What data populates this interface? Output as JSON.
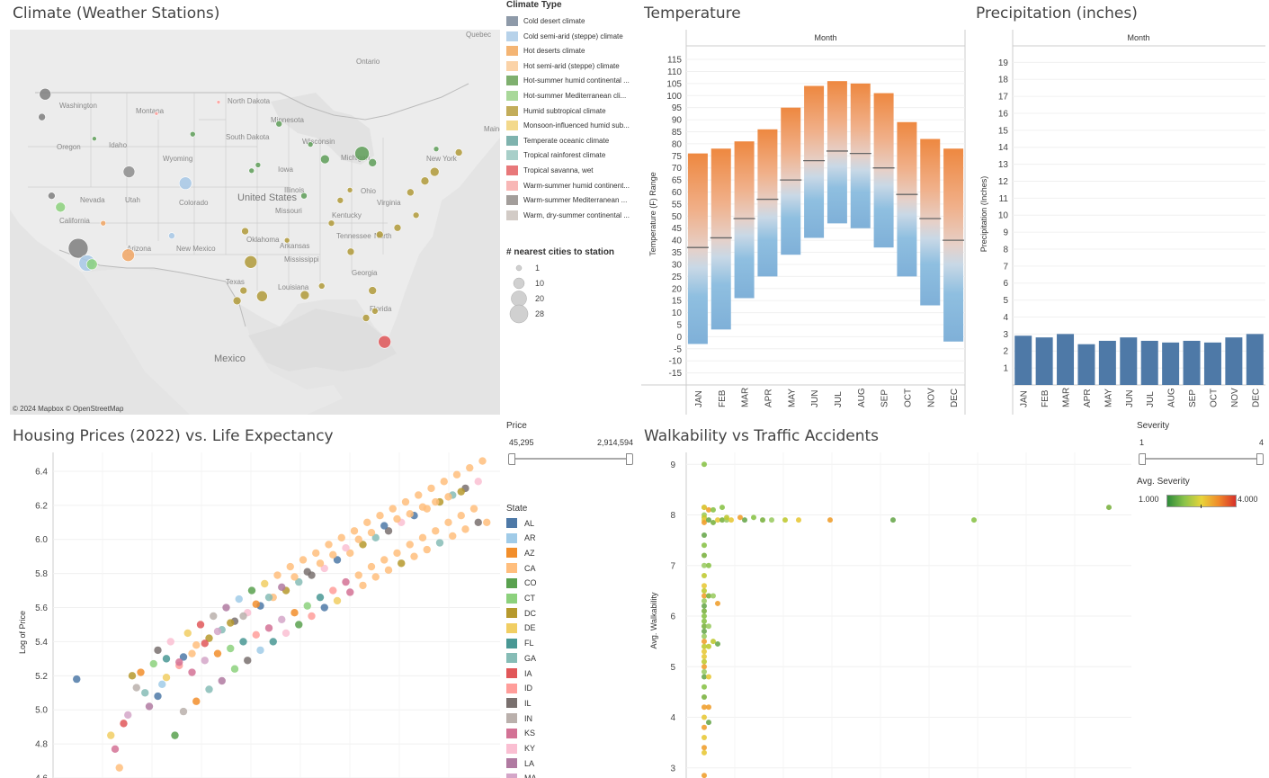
{
  "map": {
    "title": "Climate (Weather Stations)",
    "attribution": "© 2024 Mapbox  © OpenStreetMap",
    "place_labels": [
      "Quebec",
      "Ontario",
      "Washington",
      "Montana",
      "North Dakota",
      "Minnesota",
      "Oregon",
      "Idaho",
      "South Dakota",
      "Wisconsin",
      "Michigan",
      "Maine",
      "Wyoming",
      "Iowa",
      "New York",
      "Nevada",
      "Utah",
      "Colorado",
      "United States",
      "Illinois",
      "Ohio",
      "California",
      "Missouri",
      "Kentucky",
      "Virginia",
      "Oklahoma",
      "Tennessee",
      "North",
      "Arizona",
      "New Mexico",
      "Arkansas",
      "Mississippi",
      "Georgia",
      "Texas",
      "Louisiana",
      "Florida",
      "Mexico"
    ],
    "stations": [
      {
        "lon": -122.3,
        "lat": 47.5,
        "c": "#7f7f7f",
        "s": 13
      },
      {
        "lon": -118.2,
        "lat": 34.0,
        "c": "#7f7f7f",
        "s": 22
      },
      {
        "lon": -117.1,
        "lat": 32.7,
        "c": "#a7c8e6",
        "s": 18
      },
      {
        "lon": -115.1,
        "lat": 36.2,
        "c": "#f1a664",
        "s": 6
      },
      {
        "lon": -112.0,
        "lat": 33.4,
        "c": "#f1a664",
        "s": 14
      },
      {
        "lon": -104.9,
        "lat": 39.7,
        "c": "#a7c8e6",
        "s": 14
      },
      {
        "lon": -111.9,
        "lat": 40.7,
        "c": "#8d8d8d",
        "s": 13
      },
      {
        "lon": -87.6,
        "lat": 41.8,
        "c": "#5e9e58",
        "s": 10
      },
      {
        "lon": -83.0,
        "lat": 42.3,
        "c": "#5e9e58",
        "s": 16
      },
      {
        "lon": -80.2,
        "lat": 25.8,
        "c": "#e15759",
        "s": 14
      },
      {
        "lon": -95.4,
        "lat": 29.8,
        "c": "#b09a3a",
        "s": 12
      },
      {
        "lon": -84.4,
        "lat": 33.7,
        "c": "#b09a3a",
        "s": 8
      },
      {
        "lon": -96.8,
        "lat": 32.8,
        "c": "#b09a3a",
        "s": 14
      },
      {
        "lon": -90.1,
        "lat": 29.9,
        "c": "#b09a3a",
        "s": 10
      },
      {
        "lon": -81.7,
        "lat": 30.3,
        "c": "#b09a3a",
        "s": 9
      },
      {
        "lon": -77.0,
        "lat": 38.9,
        "c": "#b09a3a",
        "s": 8
      },
      {
        "lon": -75.2,
        "lat": 39.9,
        "c": "#b09a3a",
        "s": 9
      },
      {
        "lon": -74.0,
        "lat": 40.7,
        "c": "#b09a3a",
        "s": 10
      },
      {
        "lon": -71.0,
        "lat": 42.4,
        "c": "#b09a3a",
        "s": 8
      },
      {
        "lon": -106.6,
        "lat": 35.1,
        "c": "#a7c8e6",
        "s": 7
      },
      {
        "lon": -116.2,
        "lat": 43.6,
        "c": "#5e9e58",
        "s": 5
      },
      {
        "lon": -122.7,
        "lat": 45.5,
        "c": "#7f7f7f",
        "s": 8
      },
      {
        "lon": -121.5,
        "lat": 38.6,
        "c": "#7f7f7f",
        "s": 8
      },
      {
        "lon": -120.4,
        "lat": 37.6,
        "c": "#8cd17d",
        "s": 11
      },
      {
        "lon": -116.5,
        "lat": 32.6,
        "c": "#8cd17d",
        "s": 12
      },
      {
        "lon": -93.3,
        "lat": 44.9,
        "c": "#5e9e58",
        "s": 7
      },
      {
        "lon": -81.7,
        "lat": 41.5,
        "c": "#5e9e58",
        "s": 9
      },
      {
        "lon": -85.7,
        "lat": 38.2,
        "c": "#b09a3a",
        "s": 7
      },
      {
        "lon": -86.8,
        "lat": 36.2,
        "c": "#b09a3a",
        "s": 7
      },
      {
        "lon": -78.6,
        "lat": 35.8,
        "c": "#b09a3a",
        "s": 8
      },
      {
        "lon": -97.5,
        "lat": 35.5,
        "c": "#b09a3a",
        "s": 8
      },
      {
        "lon": -90.2,
        "lat": 38.6,
        "c": "#5e9e58",
        "s": 7
      },
      {
        "lon": -82.5,
        "lat": 27.9,
        "c": "#b09a3a",
        "s": 8
      },
      {
        "lon": -81.4,
        "lat": 28.5,
        "c": "#b09a3a",
        "s": 7
      },
      {
        "lon": -98.5,
        "lat": 29.4,
        "c": "#b09a3a",
        "s": 9
      },
      {
        "lon": -97.7,
        "lat": 30.3,
        "c": "#b09a3a",
        "s": 8
      },
      {
        "lon": -88.0,
        "lat": 30.7,
        "c": "#b09a3a",
        "s": 7
      },
      {
        "lon": -76.3,
        "lat": 36.9,
        "c": "#b09a3a",
        "s": 7
      },
      {
        "lon": -73.8,
        "lat": 42.7,
        "c": "#5e9e58",
        "s": 6
      },
      {
        "lon": -89.4,
        "lat": 43.1,
        "c": "#5e9e58",
        "s": 6
      },
      {
        "lon": -80.8,
        "lat": 35.2,
        "c": "#b09a3a",
        "s": 8
      },
      {
        "lon": -84.5,
        "lat": 39.1,
        "c": "#b09a3a",
        "s": 6
      },
      {
        "lon": -104.0,
        "lat": 44.0,
        "c": "#5e9e58",
        "s": 6
      },
      {
        "lon": -108.5,
        "lat": 45.8,
        "c": "#ff9d9a",
        "s": 4
      },
      {
        "lon": -100.8,
        "lat": 46.8,
        "c": "#ff9d9a",
        "s": 4
      },
      {
        "lon": -96.7,
        "lat": 40.8,
        "c": "#5e9e58",
        "s": 6
      },
      {
        "lon": -95.9,
        "lat": 41.3,
        "c": "#5e9e58",
        "s": 6
      },
      {
        "lon": -92.3,
        "lat": 34.7,
        "c": "#b09a3a",
        "s": 6
      }
    ]
  },
  "climate_legend": {
    "title": "Climate Type",
    "items": [
      {
        "label": "Cold desert climate",
        "color": "#8e9aa9"
      },
      {
        "label": "Cold semi-arid (steppe) climate",
        "color": "#b7d2ea"
      },
      {
        "label": "Hot deserts climate",
        "color": "#f4b574"
      },
      {
        "label": "Hot semi-arid (steppe) climate",
        "color": "#fbd3a8"
      },
      {
        "label": "Hot-summer humid continental ...",
        "color": "#7fb06f"
      },
      {
        "label": "Hot-summer Mediterranean cli...",
        "color": "#a9d89a"
      },
      {
        "label": "Humid subtropical climate",
        "color": "#c3ad5a"
      },
      {
        "label": "Monsoon-influenced humid sub...",
        "color": "#f3d98c"
      },
      {
        "label": "Temperate oceanic climate",
        "color": "#7fb3ae"
      },
      {
        "label": "Tropical rainforest climate",
        "color": "#a8cfc9"
      },
      {
        "label": "Tropical savanna, wet",
        "color": "#e8787a"
      },
      {
        "label": "Warm-summer humid continent...",
        "color": "#f8b7b6"
      },
      {
        "label": "Warm-summer Mediterranean ...",
        "color": "#a39e9b"
      },
      {
        "label": "Warm, dry-summer continental ...",
        "color": "#d2cbc6"
      }
    ],
    "size_title": "# nearest cities to station",
    "sizes": [
      "1",
      "10",
      "20",
      "28"
    ]
  },
  "temperature": {
    "title": "Temperature",
    "month_header": "Month",
    "ylabel": "Temperature (F) Range",
    "yticks": [
      "115",
      "110",
      "105",
      "100",
      "95",
      "90",
      "85",
      "80",
      "75",
      "70",
      "65",
      "60",
      "55",
      "50",
      "45",
      "40",
      "35",
      "30",
      "25",
      "20",
      "15",
      "10",
      "5",
      "0",
      "-5",
      "-10",
      "-15"
    ]
  },
  "precipitation": {
    "title": "Precipitation (inches)",
    "month_header": "Month",
    "ylabel": "Precipitation (Inches)",
    "yticks": [
      "19",
      "18",
      "17",
      "16",
      "15",
      "14",
      "13",
      "12",
      "11",
      "10",
      "9",
      "8",
      "7",
      "6",
      "5",
      "4",
      "3",
      "2",
      "1"
    ]
  },
  "months": [
    "JAN",
    "FEB",
    "MAR",
    "APR",
    "MAY",
    "JUN",
    "JUL",
    "AUG",
    "SEP",
    "OCT",
    "NOV",
    "DEC"
  ],
  "housing": {
    "title": "Housing Prices (2022) vs. Life Expectancy",
    "ylabel": "Log of Price",
    "yticks": [
      "6.4",
      "6.2",
      "6.0",
      "5.8",
      "5.6",
      "5.4",
      "5.2",
      "5.0",
      "4.8",
      "4.6"
    ]
  },
  "price_filter": {
    "title": "Price",
    "min": "45,295",
    "max": "2,914,594"
  },
  "state_legend": {
    "title": "State",
    "items": [
      {
        "label": "AL",
        "color": "#4e79a7"
      },
      {
        "label": "AR",
        "color": "#a0cbe8"
      },
      {
        "label": "AZ",
        "color": "#f28e2b"
      },
      {
        "label": "CA",
        "color": "#ffbe7d"
      },
      {
        "label": "CO",
        "color": "#59a14f"
      },
      {
        "label": "CT",
        "color": "#8cd17d"
      },
      {
        "label": "DC",
        "color": "#b6992d"
      },
      {
        "label": "DE",
        "color": "#f1ce63"
      },
      {
        "label": "FL",
        "color": "#499894"
      },
      {
        "label": "GA",
        "color": "#86bcb6"
      },
      {
        "label": "IA",
        "color": "#e15759"
      },
      {
        "label": "ID",
        "color": "#ff9d9a"
      },
      {
        "label": "IL",
        "color": "#79706e"
      },
      {
        "label": "IN",
        "color": "#bab0ac"
      },
      {
        "label": "KS",
        "color": "#d37295"
      },
      {
        "label": "KY",
        "color": "#fabfd2"
      },
      {
        "label": "LA",
        "color": "#b07aa1"
      },
      {
        "label": "MA",
        "color": "#d4a6c8"
      }
    ]
  },
  "walkability": {
    "title": "Walkability vs Traffic Accidents",
    "ylabel": "Avg. Walkability",
    "yticks": [
      "9",
      "8",
      "7",
      "6",
      "5",
      "4",
      "3"
    ]
  },
  "severity_filter": {
    "title": "Severity",
    "min": "1",
    "max": "4"
  },
  "avg_severity": {
    "title": "Avg. Severity",
    "min": "1.000",
    "max": "4.000"
  },
  "chart_data": [
    {
      "type": "bar",
      "title": "Temperature",
      "xlabel": "Month",
      "ylabel": "Temperature (F) Range",
      "categories": [
        "JAN",
        "FEB",
        "MAR",
        "APR",
        "MAY",
        "JUN",
        "JUL",
        "AUG",
        "SEP",
        "OCT",
        "NOV",
        "DEC"
      ],
      "series": [
        {
          "name": "min",
          "values": [
            -3,
            3,
            16,
            25,
            34,
            41,
            47,
            45,
            37,
            25,
            13,
            -2
          ]
        },
        {
          "name": "max",
          "values": [
            76,
            78,
            81,
            86,
            95,
            104,
            106,
            105,
            101,
            89,
            82,
            78
          ]
        },
        {
          "name": "avg",
          "values": [
            37,
            41,
            49,
            57,
            65,
            73,
            77,
            76,
            70,
            59,
            49,
            40
          ]
        }
      ],
      "ylim": [
        -20,
        118
      ]
    },
    {
      "type": "bar",
      "title": "Precipitation (inches)",
      "xlabel": "Month",
      "ylabel": "Precipitation (Inches)",
      "categories": [
        "JAN",
        "FEB",
        "MAR",
        "APR",
        "MAY",
        "JUN",
        "JUL",
        "AUG",
        "SEP",
        "OCT",
        "NOV",
        "DEC"
      ],
      "values": [
        2.9,
        2.8,
        3.0,
        2.4,
        2.6,
        2.8,
        2.6,
        2.5,
        2.6,
        2.5,
        2.8,
        3.0
      ],
      "ylim": [
        0,
        19.6
      ]
    },
    {
      "type": "scatter",
      "title": "Housing Prices (2022) vs. Life Expectancy",
      "ylabel": "Log of Price",
      "ylim": [
        4.6,
        6.5
      ],
      "xlim": [
        0,
        100
      ],
      "x": [
        3,
        11,
        12,
        13,
        14,
        15,
        16,
        17,
        18,
        19,
        20,
        21,
        22,
        23,
        24,
        25,
        26,
        27,
        28,
        29,
        30,
        31,
        32,
        33,
        34,
        35,
        36,
        37,
        38,
        39,
        40,
        41,
        42,
        43,
        44,
        45,
        46,
        47,
        48,
        49,
        50,
        51,
        52,
        53,
        54,
        55,
        56,
        57,
        58,
        59,
        60,
        61,
        62,
        63,
        64,
        65,
        66,
        67,
        68,
        69,
        70,
        71,
        72,
        73,
        74,
        75,
        76,
        77,
        78,
        79,
        80,
        81,
        82,
        83,
        84,
        85,
        86,
        87,
        88,
        89,
        90,
        91,
        92,
        93,
        94,
        95,
        96,
        97,
        98,
        99,
        22,
        24,
        27,
        30,
        33,
        36,
        39,
        42,
        45,
        48,
        51,
        54,
        57,
        60,
        63,
        66,
        69,
        72,
        75,
        78,
        81,
        84,
        87,
        90,
        93,
        28,
        31,
        34,
        37,
        40,
        43,
        46,
        49,
        52,
        55,
        58,
        61,
        64,
        67,
        70,
        73,
        76,
        79,
        82,
        85,
        88,
        91,
        94,
        97
      ],
      "y": [
        5.18,
        4.85,
        4.77,
        4.66,
        4.92,
        4.97,
        5.2,
        5.13,
        5.22,
        5.1,
        5.02,
        5.27,
        5.35,
        5.15,
        5.3,
        5.4,
        4.85,
        5.26,
        5.31,
        5.45,
        5.22,
        5.38,
        5.5,
        5.29,
        5.42,
        5.55,
        5.33,
        5.47,
        5.6,
        5.36,
        5.52,
        5.65,
        5.4,
        5.57,
        5.7,
        5.44,
        5.61,
        5.74,
        5.48,
        5.66,
        5.79,
        5.53,
        5.7,
        5.84,
        5.57,
        5.75,
        5.88,
        5.61,
        5.79,
        5.92,
        5.66,
        5.83,
        5.97,
        5.7,
        5.88,
        6.01,
        5.75,
        5.92,
        6.05,
        5.79,
        5.97,
        6.1,
        5.84,
        6.01,
        6.14,
        5.88,
        6.05,
        6.18,
        5.92,
        6.1,
        6.22,
        5.97,
        6.14,
        6.26,
        6.01,
        6.18,
        6.3,
        6.05,
        6.22,
        6.34,
        6.1,
        6.26,
        6.38,
        6.14,
        6.3,
        6.42,
        6.18,
        6.34,
        6.46,
        6.1,
        5.08,
        5.19,
        5.28,
        5.33,
        5.39,
        5.46,
        5.51,
        5.55,
        5.62,
        5.66,
        5.72,
        5.78,
        5.81,
        5.86,
        5.91,
        5.95,
        6.0,
        6.04,
        6.08,
        6.12,
        6.15,
        6.19,
        6.22,
        6.25,
        6.28,
        4.99,
        5.05,
        5.12,
        5.17,
        5.24,
        5.29,
        5.35,
        5.4,
        5.45,
        5.5,
        5.55,
        5.6,
        5.64,
        5.69,
        5.73,
        5.78,
        5.82,
        5.86,
        5.9,
        5.94,
        5.98,
        6.02,
        6.06,
        6.1
      ]
    },
    {
      "type": "scatter",
      "title": "Walkability vs Traffic Accidents",
      "ylabel": "Avg. Walkability",
      "ylim": [
        2.8,
        9.2
      ],
      "x": [
        0,
        0,
        0,
        0,
        0,
        0,
        0,
        0,
        0,
        0,
        0,
        0,
        0,
        0,
        0,
        0,
        0,
        0,
        0,
        0,
        0,
        0,
        0,
        0,
        0,
        0,
        0,
        0,
        0,
        0,
        0,
        0,
        0,
        0,
        0,
        0,
        0,
        0,
        0,
        0,
        1,
        1,
        1,
        1,
        1,
        1,
        1,
        1,
        1,
        2,
        2,
        2,
        2,
        3,
        3,
        3,
        4,
        4,
        5,
        5,
        6,
        8,
        9,
        11,
        13,
        15,
        18,
        21,
        28,
        42,
        60,
        90
      ],
      "y": [
        9.0,
        8.15,
        8.0,
        7.95,
        7.9,
        7.85,
        7.6,
        7.4,
        7.2,
        7.0,
        6.8,
        6.6,
        6.4,
        6.2,
        6.0,
        5.8,
        5.6,
        5.4,
        5.2,
        5.0,
        4.8,
        4.6,
        4.4,
        4.2,
        4.0,
        3.8,
        3.6,
        3.4,
        3.3,
        2.85,
        4.9,
        5.1,
        5.3,
        5.5,
        5.7,
        5.9,
        6.1,
        6.3,
        6.5,
        8.15,
        8.1,
        7.9,
        7.0,
        6.4,
        5.8,
        5.4,
        4.8,
        4.2,
        3.9,
        8.1,
        7.85,
        6.4,
        5.5,
        7.9,
        6.25,
        5.45,
        8.15,
        7.9,
        7.9,
        7.95,
        7.9,
        7.95,
        7.9,
        7.95,
        7.9,
        7.9,
        7.9,
        7.9,
        7.9,
        7.9,
        7.9,
        8.15
      ]
    }
  ]
}
